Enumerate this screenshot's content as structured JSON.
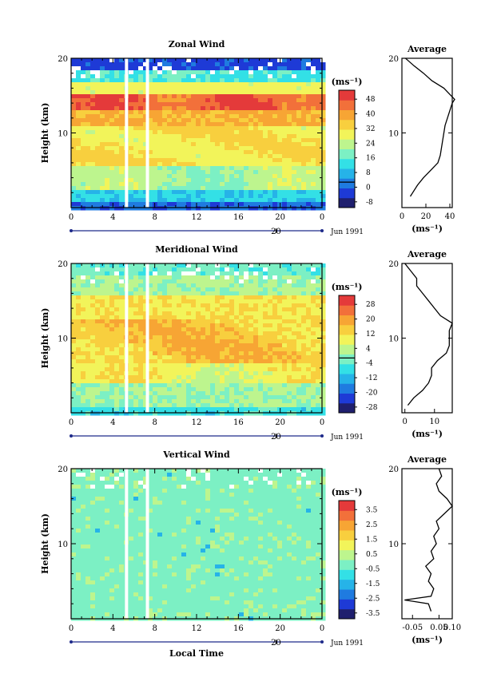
{
  "chart_data": [
    {
      "type": "heatmap",
      "title": "Zonal Wind",
      "ylabel": "Height (km)",
      "xlabel": "",
      "ylim": [
        0,
        20
      ],
      "xlim": [
        0,
        24
      ],
      "x_ticks": [
        "0",
        "4",
        "8",
        "12",
        "16",
        "20",
        "0"
      ],
      "y_ticks": [
        "10",
        "20"
      ],
      "date_tick": "20",
      "date_label": "Jun 1991",
      "unit": "(ms⁻¹)",
      "colorbar_ticks": [
        "48",
        "40",
        "32",
        "24",
        "16",
        "8",
        "0",
        "-8"
      ],
      "colorbar_range": [
        -12,
        52
      ],
      "data_gaps_x": [
        5.3,
        7.3
      ],
      "profile_peak": {
        "height_km": 14.5,
        "value": 44
      },
      "average": {
        "title": "Average",
        "xlabel": "(ms⁻¹)",
        "x_ticks": [
          "0",
          "20",
          "40"
        ],
        "xlim": [
          0,
          42
        ],
        "y_ticks": [
          "10",
          "20"
        ],
        "heights": [
          1.5,
          2,
          3,
          4,
          5,
          6,
          7,
          8,
          9,
          10,
          11,
          12,
          13,
          14,
          14.5,
          15,
          16,
          17,
          18,
          19,
          20
        ],
        "values": [
          7,
          9,
          13,
          18,
          24,
          30,
          32,
          33,
          34,
          35,
          36,
          38,
          40,
          42,
          44,
          41,
          35,
          25,
          18,
          10,
          3
        ]
      }
    },
    {
      "type": "heatmap",
      "title": "Meridional Wind",
      "ylabel": "Height (km)",
      "xlabel": "",
      "ylim": [
        0,
        20
      ],
      "xlim": [
        0,
        24
      ],
      "x_ticks": [
        "0",
        "4",
        "8",
        "12",
        "16",
        "20",
        "0"
      ],
      "y_ticks": [
        "10",
        "20"
      ],
      "date_tick": "20",
      "date_label": "Jun 1991",
      "unit": "(ms⁻¹)",
      "colorbar_ticks": [
        "28",
        "20",
        "12",
        "4",
        "-4",
        "-12",
        "-20",
        "-28"
      ],
      "colorbar_range": [
        -32,
        32
      ],
      "data_gaps_x": [
        5.3,
        7.3
      ],
      "average": {
        "title": "Average",
        "xlabel": "(ms⁻¹)",
        "x_ticks": [
          "0",
          "10"
        ],
        "xlim": [
          -1,
          16
        ],
        "y_ticks": [
          "10",
          "20"
        ],
        "heights": [
          1,
          2,
          3,
          4,
          5,
          6,
          7,
          8,
          9,
          10,
          11,
          12,
          13,
          14,
          15,
          16,
          17,
          18,
          19,
          20
        ],
        "values": [
          1,
          3,
          6,
          8,
          9,
          9,
          11,
          14,
          15,
          15,
          15,
          16,
          12,
          10,
          8,
          6,
          4,
          4,
          2,
          0
        ]
      }
    },
    {
      "type": "heatmap",
      "title": "Vertical Wind",
      "ylabel": "Height (km)",
      "xlabel": "Local Time",
      "ylim": [
        0,
        20
      ],
      "xlim": [
        0,
        24
      ],
      "x_ticks": [
        "0",
        "4",
        "8",
        "12",
        "16",
        "20",
        "0"
      ],
      "y_ticks": [
        "10",
        "20"
      ],
      "date_tick": "20",
      "date_label": "Jun 1991",
      "unit": "(ms⁻¹)",
      "colorbar_ticks": [
        "3.5",
        "2.5",
        "1.5",
        "0.5",
        "-0.5",
        "-1.5",
        "-2.5",
        "-3.5"
      ],
      "colorbar_range": [
        -4,
        4
      ],
      "data_gaps_x": [
        5.3,
        7.3
      ],
      "average": {
        "title": "Average",
        "xlabel": "(ms⁻¹)",
        "x_ticks": [
          "-0.05",
          "0.05",
          "0.10"
        ],
        "xlim": [
          -0.09,
          0.1
        ],
        "y_ticks": [
          "10",
          "20"
        ],
        "heights": [
          1,
          2,
          2.5,
          3,
          4,
          5,
          6,
          7,
          8,
          9,
          10,
          11,
          12,
          13,
          14,
          15,
          16,
          17,
          18,
          19,
          20
        ],
        "values": [
          0.02,
          0.01,
          -0.08,
          0.02,
          0.03,
          0.01,
          0.02,
          0.0,
          0.03,
          0.02,
          0.04,
          0.03,
          0.05,
          0.04,
          0.07,
          0.1,
          0.08,
          0.05,
          0.04,
          0.06,
          0.05
        ]
      }
    }
  ],
  "colors": {
    "scale": [
      "#1f1f6e",
      "#1e3ad6",
      "#1f7be0",
      "#26b3e8",
      "#33e0e6",
      "#7cf0c4",
      "#bdf58e",
      "#f2f45a",
      "#f8cf3e",
      "#f7a534",
      "#f2703a",
      "#e43a3a"
    ],
    "frame": "#000000",
    "gap": "#ffffff"
  }
}
